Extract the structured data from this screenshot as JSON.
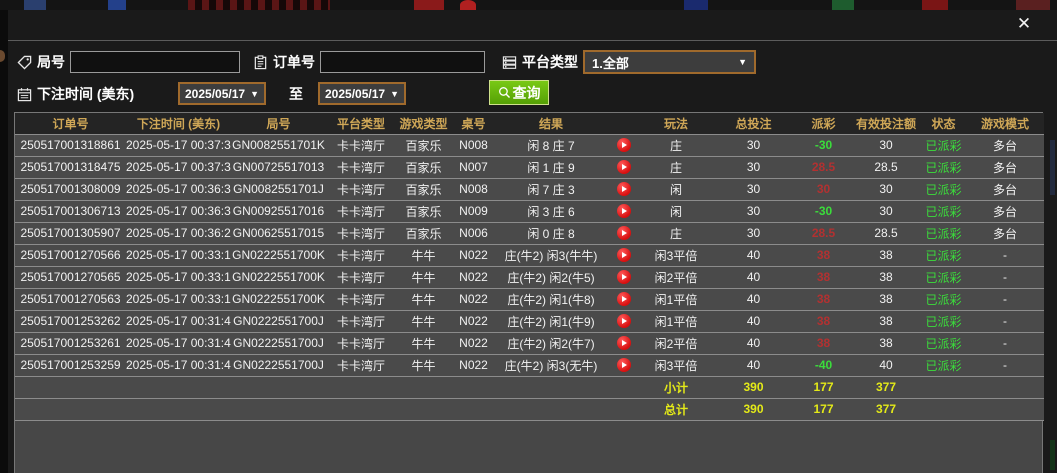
{
  "dialog": {
    "close_icon": "✕"
  },
  "filters": {
    "round_label": "局号",
    "round_value": "",
    "order_label": "订单号",
    "order_value": "",
    "platform_label": "平台类型",
    "platform_value": "1.全部",
    "time_label": "下注时间 (美东)",
    "date_from": "2025/05/17",
    "to_label": "至",
    "date_to": "2025/05/17",
    "search_label": "查询",
    "caret": "▼"
  },
  "table": {
    "headers": [
      "订单号",
      "下注时间 (美东)",
      "局号",
      "平台类型",
      "游戏类型",
      "桌号",
      "结果",
      "",
      "玩法",
      "总投注",
      "派彩",
      "有效投注额",
      "状态",
      "游戏模式"
    ],
    "rows": [
      {
        "order_id": "250517001318861",
        "time": "2025-05-17 00:37:37",
        "round_id": "GN0082551701K",
        "platform": "卡卡湾厅",
        "game_type": "百家乐",
        "table_no": "N008",
        "result": "闲 8 庄 7",
        "play": "庄",
        "total_bet": "30",
        "payout": "-30",
        "valid_bet": "30",
        "status": "已派彩",
        "mode": "多台"
      },
      {
        "order_id": "250517001318475",
        "time": "2025-05-17 00:37:35",
        "round_id": "GN00725517013",
        "platform": "卡卡湾厅",
        "game_type": "百家乐",
        "table_no": "N007",
        "result": "闲 1 庄 9",
        "play": "庄",
        "total_bet": "30",
        "payout": "28.5",
        "valid_bet": "28.5",
        "status": "已派彩",
        "mode": "多台"
      },
      {
        "order_id": "250517001308009",
        "time": "2025-05-17 00:36:37",
        "round_id": "GN0082551701J",
        "platform": "卡卡湾厅",
        "game_type": "百家乐",
        "table_no": "N008",
        "result": "闲 7 庄 3",
        "play": "闲",
        "total_bet": "30",
        "payout": "30",
        "valid_bet": "30",
        "status": "已派彩",
        "mode": "多台"
      },
      {
        "order_id": "250517001306713",
        "time": "2025-05-17 00:36:30",
        "round_id": "GN00925517016",
        "platform": "卡卡湾厅",
        "game_type": "百家乐",
        "table_no": "N009",
        "result": "闲 3 庄 6",
        "play": "闲",
        "total_bet": "30",
        "payout": "-30",
        "valid_bet": "30",
        "status": "已派彩",
        "mode": "多台"
      },
      {
        "order_id": "250517001305907",
        "time": "2025-05-17 00:36:26",
        "round_id": "GN00625517015",
        "platform": "卡卡湾厅",
        "game_type": "百家乐",
        "table_no": "N006",
        "result": "闲 0 庄 8",
        "play": "庄",
        "total_bet": "30",
        "payout": "28.5",
        "valid_bet": "28.5",
        "status": "已派彩",
        "mode": "多台"
      },
      {
        "order_id": "250517001270566",
        "time": "2025-05-17 00:33:15",
        "round_id": "GN0222551700K",
        "platform": "卡卡湾厅",
        "game_type": "牛牛",
        "table_no": "N022",
        "result": "庄(牛2) 闲3(牛牛)",
        "play": "闲3平倍",
        "total_bet": "40",
        "payout": "38",
        "valid_bet": "38",
        "status": "已派彩",
        "mode": "-"
      },
      {
        "order_id": "250517001270565",
        "time": "2025-05-17 00:33:15",
        "round_id": "GN0222551700K",
        "platform": "卡卡湾厅",
        "game_type": "牛牛",
        "table_no": "N022",
        "result": "庄(牛2) 闲2(牛5)",
        "play": "闲2平倍",
        "total_bet": "40",
        "payout": "38",
        "valid_bet": "38",
        "status": "已派彩",
        "mode": "-"
      },
      {
        "order_id": "250517001270563",
        "time": "2025-05-17 00:33:15",
        "round_id": "GN0222551700K",
        "platform": "卡卡湾厅",
        "game_type": "牛牛",
        "table_no": "N022",
        "result": "庄(牛2) 闲1(牛8)",
        "play": "闲1平倍",
        "total_bet": "40",
        "payout": "38",
        "valid_bet": "38",
        "status": "已派彩",
        "mode": "-"
      },
      {
        "order_id": "250517001253262",
        "time": "2025-05-17 00:31:45",
        "round_id": "GN0222551700J",
        "platform": "卡卡湾厅",
        "game_type": "牛牛",
        "table_no": "N022",
        "result": "庄(牛2) 闲1(牛9)",
        "play": "闲1平倍",
        "total_bet": "40",
        "payout": "38",
        "valid_bet": "38",
        "status": "已派彩",
        "mode": "-"
      },
      {
        "order_id": "250517001253261",
        "time": "2025-05-17 00:31:45",
        "round_id": "GN0222551700J",
        "platform": "卡卡湾厅",
        "game_type": "牛牛",
        "table_no": "N022",
        "result": "庄(牛2) 闲2(牛7)",
        "play": "闲2平倍",
        "total_bet": "40",
        "payout": "38",
        "valid_bet": "38",
        "status": "已派彩",
        "mode": "-"
      },
      {
        "order_id": "250517001253259",
        "time": "2025-05-17 00:31:45",
        "round_id": "GN0222551700J",
        "platform": "卡卡湾厅",
        "game_type": "牛牛",
        "table_no": "N022",
        "result": "庄(牛2) 闲3(无牛)",
        "play": "闲3平倍",
        "total_bet": "40",
        "payout": "-40",
        "valid_bet": "40",
        "status": "已派彩",
        "mode": "-"
      }
    ],
    "subtotal": {
      "label": "小计",
      "total_bet": "390",
      "payout": "177",
      "valid_bet": "377"
    },
    "total": {
      "label": "总计",
      "total_bet": "390",
      "payout": "177",
      "valid_bet": "377"
    }
  },
  "colors": {
    "header_gold": "#cfa757",
    "payout_win_red": "#b23131",
    "payout_loss_green": "#3bdc3b",
    "status_paid_green": "#3bdc3b",
    "summary_yellow": "#e4ea18",
    "search_button_green": "#61ad0c",
    "date_border_orange": "#a06a2c",
    "row_gray": "#4a4a4a"
  }
}
